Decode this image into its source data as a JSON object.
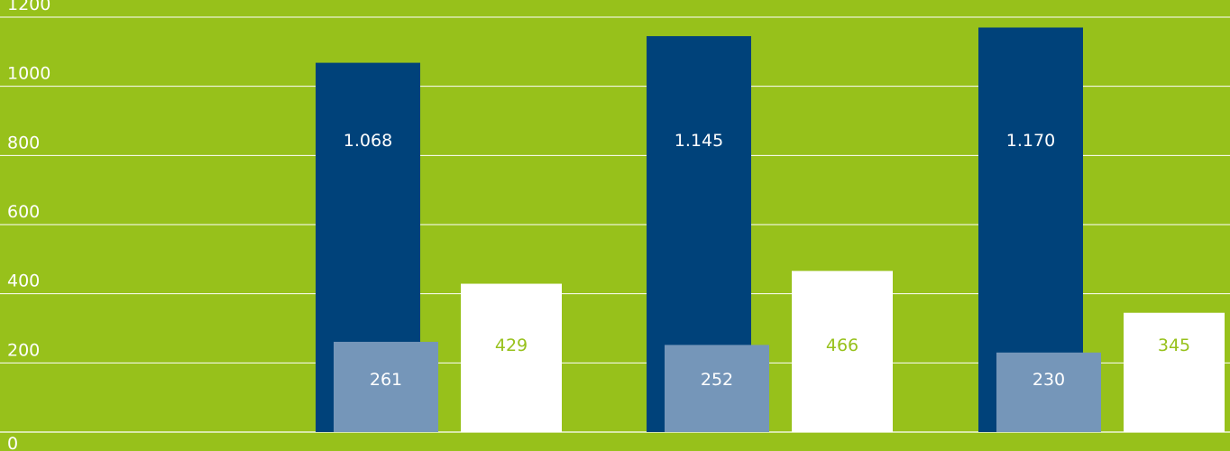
{
  "chart_data": {
    "type": "bar",
    "title": "",
    "xlabel": "",
    "ylabel": "",
    "categories": [
      "",
      "",
      ""
    ],
    "ylim": [
      0,
      1200
    ],
    "yticks": [
      0,
      200,
      400,
      600,
      800,
      1000,
      1200
    ],
    "grid": true,
    "series": [
      {
        "values": [
          1068,
          1145,
          1170
        ],
        "labels": [
          "1.068",
          "1.145",
          "1.170"
        ],
        "color": "#00427a",
        "label_color": "#ffffff"
      },
      {
        "values": [
          261,
          252,
          230
        ],
        "labels": [
          "261",
          "252",
          "230"
        ],
        "color": "#7596b9",
        "label_color": "#ffffff"
      },
      {
        "values": [
          429,
          466,
          345
        ],
        "labels": [
          "429",
          "466",
          "345"
        ],
        "color": "#ffffff",
        "label_color": "#97c11b"
      }
    ],
    "colors": {
      "background": "#97c11b",
      "grid": "#ffffff",
      "axis_text": "#ffffff"
    }
  }
}
